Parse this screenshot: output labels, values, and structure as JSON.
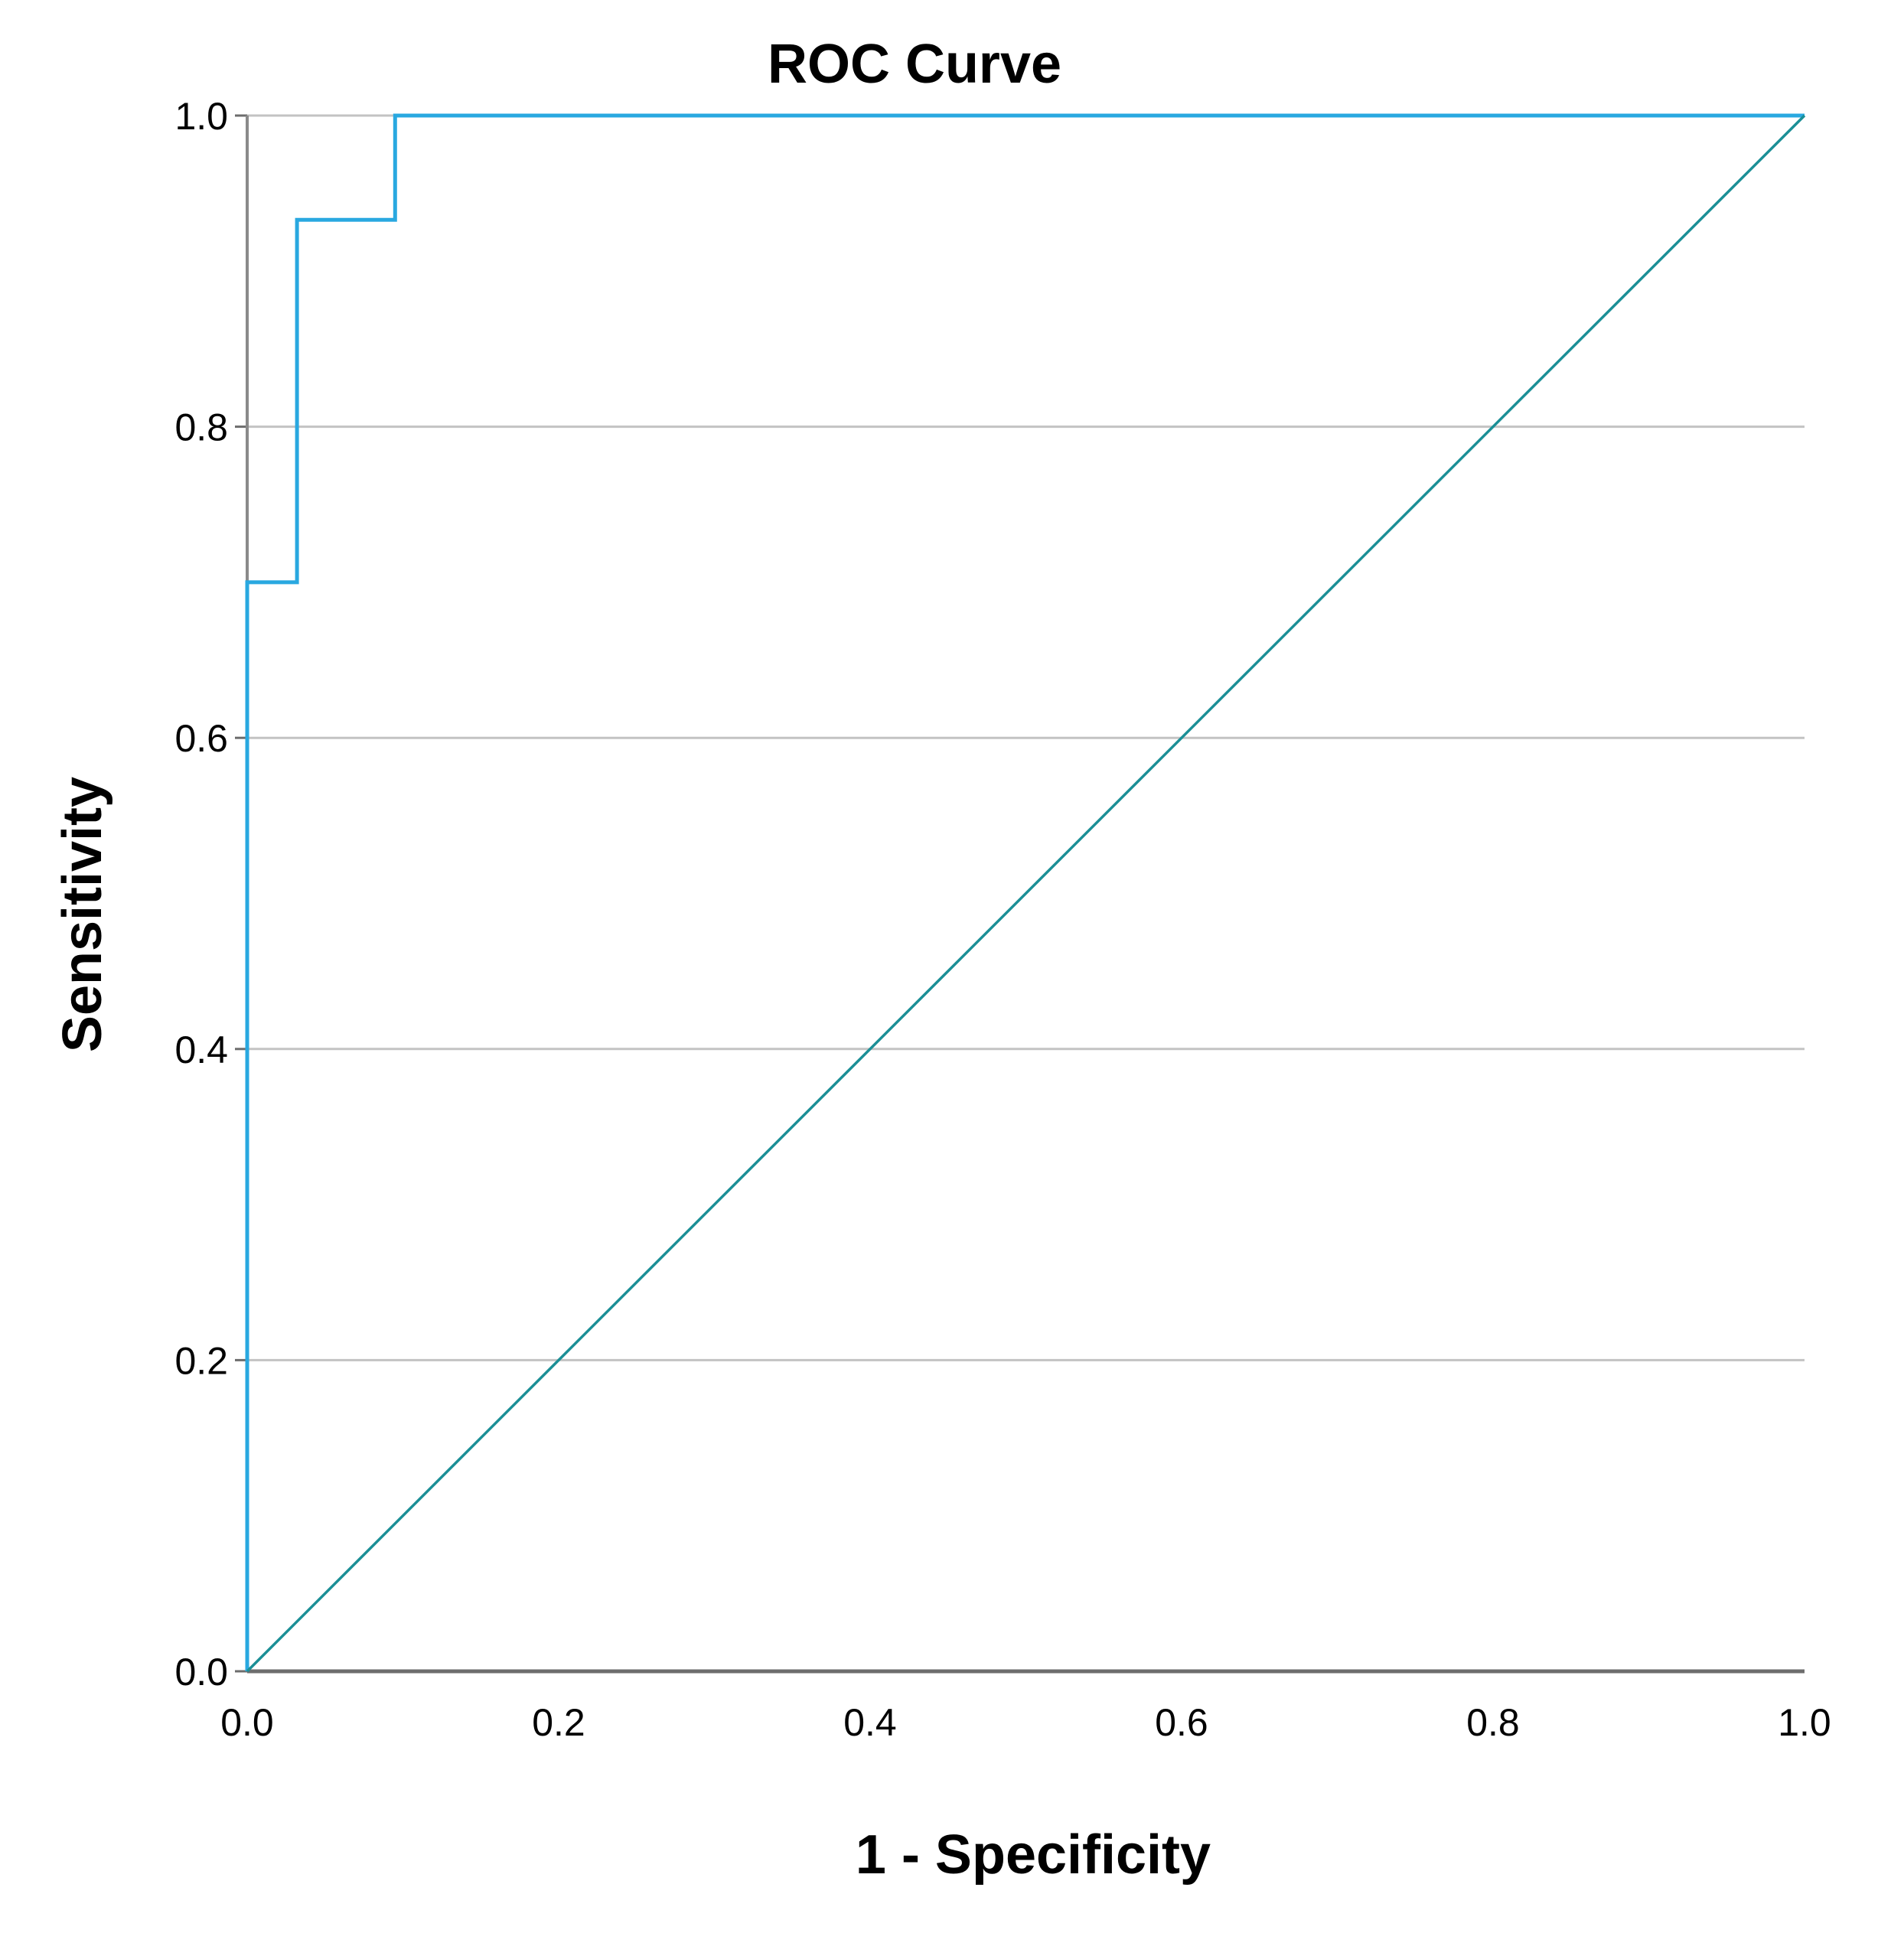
{
  "chart_data": {
    "type": "line",
    "title": "ROC Curve",
    "xlabel": "1 - Specificity",
    "ylabel": "Sensitivity",
    "xlim": [
      0,
      1
    ],
    "ylim": [
      0,
      1
    ],
    "x_ticks": [
      "0.0",
      "0.2",
      "0.4",
      "0.6",
      "0.8",
      "1.0"
    ],
    "y_ticks": [
      "0.0",
      "0.2",
      "0.4",
      "0.6",
      "0.8",
      "1.0"
    ],
    "grid": "horizontal",
    "legend": "none",
    "series": [
      {
        "color": "#29a8e0",
        "x": [
          0.0,
          0.0,
          0.032,
          0.032,
          0.095,
          0.095,
          1.0
        ],
        "y": [
          0.0,
          0.7,
          0.7,
          0.933,
          0.933,
          1.0,
          1.0
        ]
      },
      {
        "color": "#1b8f96",
        "x": [
          0.0,
          1.0
        ],
        "y": [
          0.0,
          1.0
        ]
      }
    ]
  }
}
